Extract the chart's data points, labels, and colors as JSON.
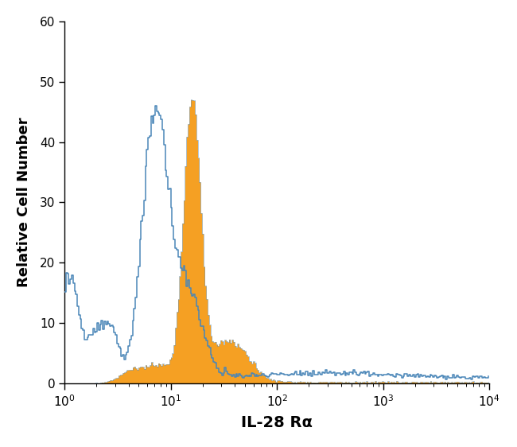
{
  "xlabel": "IL-28 Rα",
  "ylabel": "Relative Cell Number",
  "ylim": [
    0,
    60
  ],
  "yticks": [
    0,
    10,
    20,
    30,
    40,
    50,
    60
  ],
  "blue_color": "#4a86b8",
  "orange_color": "#f5a023",
  "background_color": "#ffffff",
  "axis_fontsize": 13,
  "tick_fontsize": 11
}
